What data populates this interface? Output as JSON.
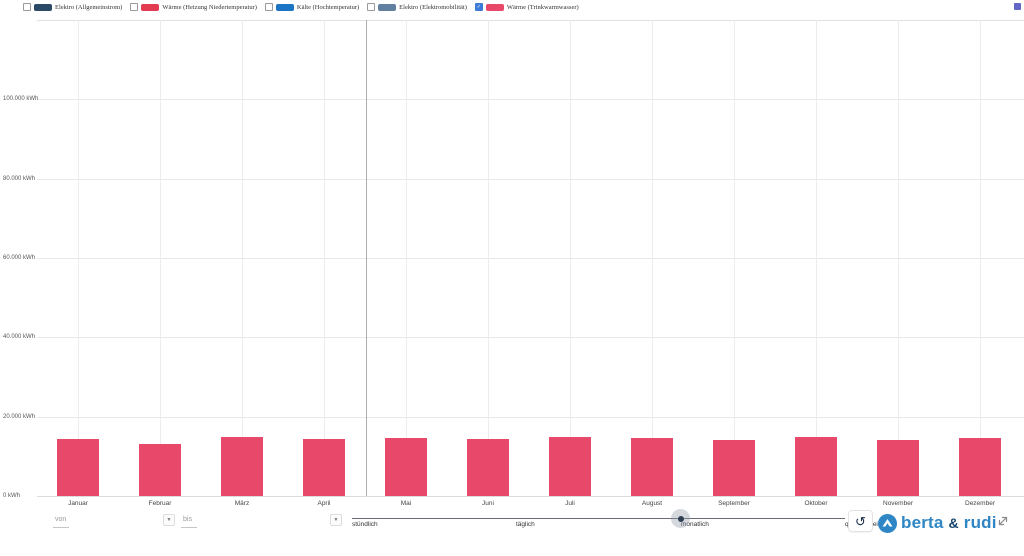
{
  "legend": {
    "items": [
      {
        "label": "Elektro (Allgemeinstrom)",
        "color": "#2a4a68",
        "checked": false
      },
      {
        "label": "Wärme (Heizung Niedertemperatur)",
        "color": "#e23b52",
        "checked": false
      },
      {
        "label": "Kälte (Hochtemperatur)",
        "color": "#1c74c4",
        "checked": false
      },
      {
        "label": "Elektro (Elektromobilität)",
        "color": "#62809f",
        "checked": false
      },
      {
        "label": "Wärme (Trinkwarmwasser)",
        "color": "#e8496a",
        "checked": true
      }
    ],
    "check_glyph": "✓"
  },
  "chart_data": {
    "type": "bar",
    "title": "",
    "categories": [
      "Januar",
      "Februar",
      "März",
      "April",
      "Mai",
      "Juni",
      "Juli",
      "August",
      "September",
      "Oktober",
      "November",
      "Dezember"
    ],
    "series": [
      {
        "name": "Wärme (Trinkwarmwasser)",
        "color": "#e8496a",
        "values": [
          14300,
          13100,
          14800,
          14300,
          14600,
          14300,
          14800,
          14600,
          14000,
          14800,
          14000,
          14600
        ]
      }
    ],
    "unit": "kWh",
    "y_ticks": [
      {
        "label": "100.000 kWh",
        "value": 100000
      },
      {
        "label": "80.000 kWh",
        "value": 80000
      },
      {
        "label": "60.000 kWh",
        "value": 60000
      },
      {
        "label": "40.000 kWh",
        "value": 40000
      },
      {
        "label": "20.000 kWh",
        "value": 20000
      },
      {
        "label": "0 kWh",
        "value": 0
      }
    ],
    "ylim": [
      0,
      120000
    ],
    "grid": true,
    "legend_position": "top"
  },
  "controls": {
    "von_placeholder": "von",
    "bis_placeholder": "bis",
    "dropdown_glyph": "▼",
    "slider": {
      "labels": [
        "stündlich",
        "täglich",
        "monatlich",
        "quartalsweise"
      ],
      "selected": "monatlich"
    },
    "reset_glyph": "↺"
  },
  "branding": {
    "name_first": "berta",
    "amp": "&",
    "name_second": "rudi",
    "color": "#2e86c5"
  }
}
